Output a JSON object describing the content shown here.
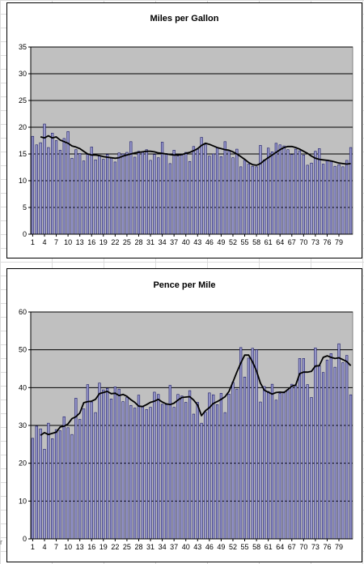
{
  "chart_data": [
    {
      "type": "bar",
      "title": "Miles per Gallon",
      "xlabel": "",
      "ylabel": "",
      "ylim": [
        0,
        35
      ],
      "yticks": [
        0,
        5,
        10,
        15,
        20,
        25,
        30,
        35
      ],
      "xtick_labels": [
        "1",
        "4",
        "7",
        "10",
        "13",
        "16",
        "19",
        "22",
        "25",
        "28",
        "31",
        "34",
        "37",
        "40",
        "43",
        "46",
        "49",
        "52",
        "55",
        "58",
        "61",
        "64",
        "67",
        "70",
        "73",
        "76",
        "79"
      ],
      "grid": true,
      "plot_background": "#c0c0c0",
      "bar_color": "#9999cc",
      "bar_edge_color": "#1a1a66",
      "trend_line_color": "#000000",
      "values": [
        18.3,
        16.7,
        17.1,
        20.6,
        16.2,
        18.9,
        17.5,
        15.7,
        17.9,
        19.2,
        14.2,
        15.8,
        15.1,
        13.7,
        14.9,
        16.3,
        13.9,
        14.6,
        14.0,
        14.9,
        14.2,
        13.5,
        15.2,
        15.0,
        15.3,
        17.3,
        14.4,
        15.5,
        15.4,
        15.8,
        13.8,
        14.9,
        14.3,
        17.2,
        15.1,
        13.2,
        15.7,
        14.6,
        14.8,
        15.3,
        13.6,
        16.4,
        15.9,
        18.1,
        16.7,
        14.6,
        15.0,
        16.2,
        14.5,
        17.3,
        15.6,
        14.3,
        15.9,
        12.6,
        13.8,
        13.1,
        12.7,
        12.6,
        16.6,
        13.9,
        16.1,
        15.4,
        17.0,
        16.7,
        16.5,
        15.8,
        14.9,
        15.9,
        15.6,
        14.8,
        12.9,
        13.3,
        15.5,
        16.0,
        13.1,
        13.9,
        13.6,
        12.7,
        13.0,
        12.6,
        13.8,
        16.2
      ],
      "trend": [
        18.2,
        18.0,
        18.4,
        18.0,
        18.2,
        17.6,
        17.3,
        17.0,
        16.5,
        16.3,
        16.0,
        15.5,
        15.0,
        14.8,
        14.8,
        14.7,
        14.5,
        14.4,
        14.3,
        14.2,
        14.3,
        14.6,
        14.8,
        15.0,
        15.2,
        15.3,
        15.4,
        15.5,
        15.5,
        15.4,
        15.2,
        15.1,
        15.0,
        14.9,
        14.8,
        14.8,
        14.9,
        15.1,
        15.3,
        15.6,
        16.0,
        16.6,
        17.0,
        16.8,
        16.5,
        16.2,
        16.0,
        15.8,
        15.7,
        15.4,
        15.0,
        14.5,
        14.0,
        13.4,
        13.0,
        12.9,
        13.2,
        13.8,
        14.3,
        14.8,
        15.3,
        15.8,
        16.2,
        16.4,
        16.4,
        16.2,
        15.9,
        15.5,
        15.1,
        14.6,
        14.2,
        14.0,
        13.9,
        13.8,
        13.7,
        13.5,
        13.3,
        13.2,
        13.1,
        13.2
      ]
    },
    {
      "type": "bar",
      "title": "Pence per Mile",
      "xlabel": "",
      "ylabel": "",
      "ylim": [
        0,
        60
      ],
      "yticks": [
        0,
        10,
        20,
        30,
        40,
        50,
        60
      ],
      "xtick_labels": [
        "1",
        "4",
        "7",
        "10",
        "13",
        "16",
        "19",
        "22",
        "25",
        "28",
        "31",
        "34",
        "37",
        "40",
        "43",
        "46",
        "49",
        "52",
        "55",
        "58",
        "61",
        "64",
        "67",
        "70",
        "73",
        "76",
        "79"
      ],
      "grid": true,
      "plot_background": "#c0c0c0",
      "bar_color": "#9999cc",
      "bar_edge_color": "#1a1a66",
      "trend_line_color": "#000000",
      "values": [
        26.6,
        29.8,
        29.1,
        23.7,
        30.6,
        26.5,
        28.9,
        28.6,
        32.3,
        29.4,
        27.6,
        37.2,
        31.6,
        34.4,
        40.8,
        36.2,
        33.4,
        41.2,
        39.4,
        39.8,
        37.0,
        40.2,
        39.6,
        36.3,
        37.4,
        35.3,
        34.6,
        38.0,
        35.0,
        34.2,
        34.8,
        38.8,
        38.2,
        35.6,
        35.5,
        40.6,
        34.8,
        38.2,
        37.8,
        36.1,
        39.2,
        33.0,
        36.1,
        30.6,
        33.5,
        38.6,
        38.1,
        35.5,
        38.5,
        33.4,
        38.3,
        41.4,
        39.6,
        50.6,
        42.8,
        47.8,
        50.4,
        50.0,
        36.2,
        40.3,
        39.0,
        40.9,
        36.7,
        38.5,
        38.9,
        39.5,
        40.9,
        40.5,
        47.7,
        47.7,
        40.8,
        37.4,
        50.5,
        45.8,
        44.0,
        47.3,
        49.0,
        45.4,
        51.6,
        46.6,
        48.5,
        38.1
      ],
      "trend": [
        27.4,
        28.1,
        27.6,
        27.9,
        28.2,
        29.6,
        29.8,
        30.4,
        31.8,
        32.3,
        33.3,
        36.0,
        36.3,
        36.4,
        36.9,
        38.4,
        38.7,
        39.0,
        38.4,
        38.5,
        37.9,
        38.2,
        37.7,
        36.8,
        36.1,
        35.1,
        35.0,
        35.5,
        36.1,
        36.4,
        36.9,
        36.2,
        35.7,
        35.5,
        35.9,
        36.7,
        37.4,
        37.5,
        37.6,
        36.7,
        35.4,
        32.6,
        33.9,
        34.7,
        35.8,
        36.3,
        36.9,
        37.6,
        39.0,
        41.5,
        44.1,
        46.5,
        48.6,
        48.6,
        46.8,
        44.4,
        41.2,
        39.3,
        38.8,
        38.3,
        38.7,
        38.8,
        38.7,
        39.5,
        40.4,
        40.7,
        43.7,
        44.1,
        44.1,
        44.3,
        45.7,
        45.8,
        48.0,
        48.4,
        48.0,
        47.7,
        47.9,
        47.4,
        46.9,
        45.8
      ]
    }
  ]
}
